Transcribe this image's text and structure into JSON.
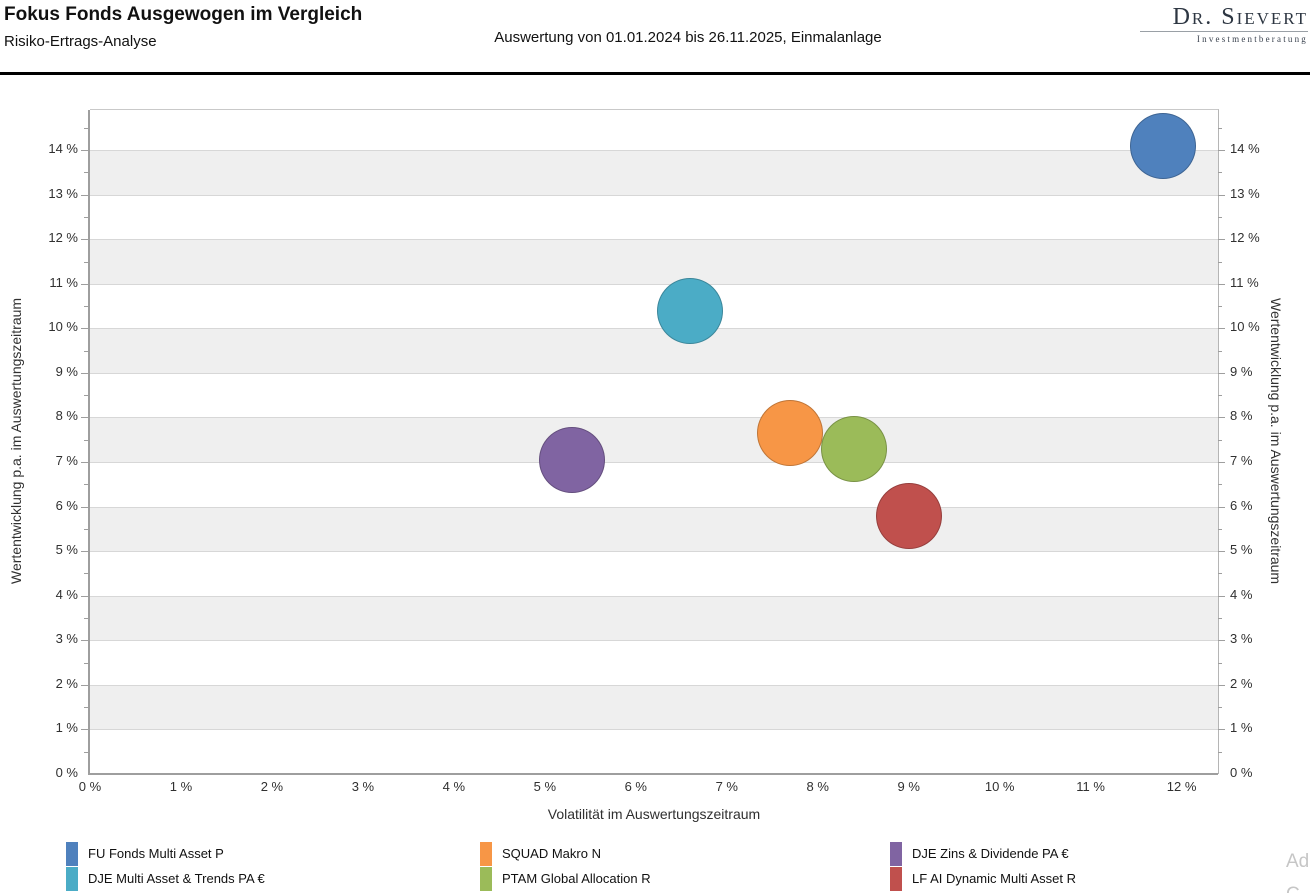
{
  "header": {
    "title": "Fokus Fonds Ausgewogen im Vergleich",
    "subtitle": "Risiko-Ertrags-Analyse",
    "period": "Auswertung von 01.01.2024 bis 26.11.2025, Einmalanlage",
    "logo_name": "Dr. Sievert",
    "logo_tagline": "Investmentberatung"
  },
  "chart_data": {
    "type": "scatter",
    "title": "",
    "xlabel": "Volatilität im Auswertungszeitraum",
    "ylabel_left": "Wertentwicklung p.a. im Auswertungszeitraum",
    "ylabel_right": "Wertentwicklung p.a. im Auswertungszeitraum",
    "xlim": [
      0,
      12.4
    ],
    "ylim": [
      0,
      14.9
    ],
    "x_ticks": [
      0,
      1,
      2,
      3,
      4,
      5,
      6,
      7,
      8,
      9,
      10,
      11,
      12
    ],
    "y_ticks": [
      0,
      1,
      2,
      3,
      4,
      5,
      6,
      7,
      8,
      9,
      10,
      11,
      12,
      13,
      14
    ],
    "tick_suffix": " %",
    "grid": true,
    "band_color": "#efefef",
    "band_odd_stripes": true,
    "legend_position": "bottom",
    "marker_radius_px": 33,
    "series": [
      {
        "name": "FU Fonds Multi Asset P",
        "color": "#4F81BD",
        "x": 11.8,
        "y": 14.1
      },
      {
        "name": "SQUAD Makro N",
        "color": "#F79646",
        "x": 7.7,
        "y": 7.65
      },
      {
        "name": "DJE Zins & Dividende PA €",
        "color": "#8064A2",
        "x": 5.3,
        "y": 7.05
      },
      {
        "name": "DJE Multi Asset & Trends PA €",
        "color": "#4BACC6",
        "x": 6.6,
        "y": 10.4
      },
      {
        "name": "PTAM Global Allocation R",
        "color": "#9BBB59",
        "x": 8.4,
        "y": 7.3
      },
      {
        "name": "LF AI Dynamic Multi Asset R",
        "color": "#C0504D",
        "x": 9.0,
        "y": 5.8
      }
    ]
  },
  "legend": {
    "columns": [
      {
        "items": [
          {
            "label": "FU Fonds Multi Asset P",
            "color": "#4F81BD"
          },
          {
            "label": "DJE Multi Asset & Trends PA €",
            "color": "#4BACC6"
          }
        ]
      },
      {
        "items": [
          {
            "label": "SQUAD Makro N",
            "color": "#F79646"
          },
          {
            "label": "PTAM Global Allocation R",
            "color": "#9BBB59"
          }
        ]
      },
      {
        "items": [
          {
            "label": "DJE Zins & Dividende PA €",
            "color": "#8064A2"
          },
          {
            "label": "LF AI Dynamic Multi Asset R",
            "color": "#C0504D"
          }
        ]
      }
    ]
  },
  "watermark": {
    "line1": "Ad",
    "line2": "C"
  }
}
